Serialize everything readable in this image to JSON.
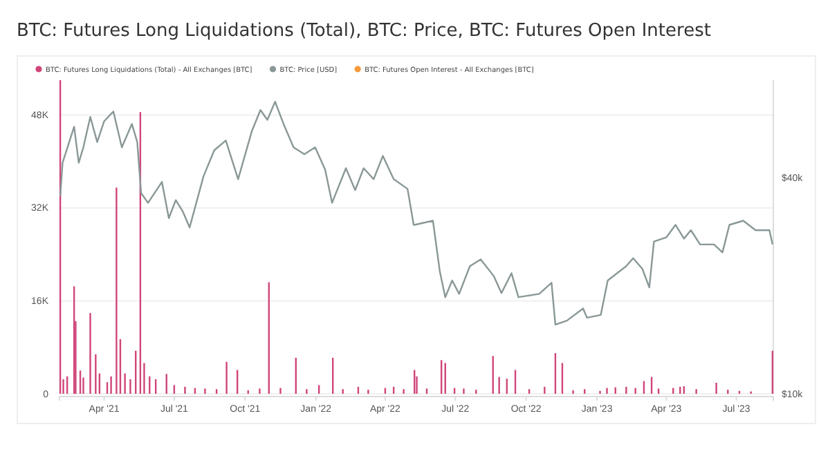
{
  "chart_data": {
    "type": "bar",
    "title": "BTC: Futures Long Liquidations (Total), BTC: Price, BTC: Futures Open Interest",
    "xlim": [
      "2021-02-02",
      "2023-08-18"
    ],
    "xticks": [
      {
        "value": "2021-04-01",
        "label": "Apr '21"
      },
      {
        "value": "2021-07-01",
        "label": "Jul '21"
      },
      {
        "value": "2021-10-01",
        "label": "Oct '21"
      },
      {
        "value": "2022-01-01",
        "label": "Jan '22"
      },
      {
        "value": "2022-04-01",
        "label": "Apr '22"
      },
      {
        "value": "2022-07-01",
        "label": "Jul '22"
      },
      {
        "value": "2022-10-01",
        "label": "Oct '22"
      },
      {
        "value": "2023-01-01",
        "label": "Jan '23"
      },
      {
        "value": "2023-04-01",
        "label": "Apr '23"
      },
      {
        "value": "2023-07-01",
        "label": "Jul '23"
      }
    ],
    "ylim": [
      0,
      54000
    ],
    "yticks": [
      {
        "value": 0,
        "label": "0"
      },
      {
        "value": 16000,
        "label": "16K"
      },
      {
        "value": 32000,
        "label": "32K"
      },
      {
        "value": 48000,
        "label": "48K"
      }
    ],
    "y2lim": [
      10000,
      75000
    ],
    "y2ticks": [
      {
        "value": 10000,
        "label": "$10k"
      },
      {
        "value": 40000,
        "label": "$40k"
      }
    ],
    "log": "y2",
    "grid": "y",
    "legend": "top left",
    "series": [
      {
        "name": "BTC: Futures Long Liquidations (Total) - All Exchanges [BTC]",
        "axis": "y",
        "color": "#d0457a",
        "x": [
          "2021-02-03",
          "2021-02-07",
          "2021-02-12",
          "2021-02-21",
          "2021-02-23",
          "2021-03-01",
          "2021-03-05",
          "2021-03-14",
          "2021-03-21",
          "2021-03-26",
          "2021-04-05",
          "2021-04-10",
          "2021-04-17",
          "2021-04-22",
          "2021-04-28",
          "2021-05-05",
          "2021-05-12",
          "2021-05-18",
          "2021-05-23",
          "2021-05-30",
          "2021-06-07",
          "2021-06-21",
          "2021-07-01",
          "2021-07-15",
          "2021-07-28",
          "2021-08-10",
          "2021-08-25",
          "2021-09-07",
          "2021-09-21",
          "2021-10-05",
          "2021-10-20",
          "2021-11-01",
          "2021-11-16",
          "2021-12-06",
          "2021-12-20",
          "2022-01-05",
          "2022-01-23",
          "2022-02-05",
          "2022-02-25",
          "2022-03-10",
          "2022-04-01",
          "2022-04-12",
          "2022-04-25",
          "2022-05-09",
          "2022-05-12",
          "2022-05-25",
          "2022-06-13",
          "2022-06-18",
          "2022-06-30",
          "2022-07-12",
          "2022-07-28",
          "2022-08-19",
          "2022-08-27",
          "2022-09-06",
          "2022-09-17",
          "2022-10-05",
          "2022-10-25",
          "2022-11-08",
          "2022-11-17",
          "2022-12-01",
          "2022-12-16",
          "2023-01-05",
          "2023-01-14",
          "2023-01-25",
          "2023-02-08",
          "2023-02-20",
          "2023-03-03",
          "2023-03-13",
          "2023-03-22",
          "2023-04-10",
          "2023-04-19",
          "2023-04-24",
          "2023-05-10",
          "2023-06-05",
          "2023-06-20",
          "2023-07-05",
          "2023-07-20",
          "2023-08-17"
        ],
        "values": [
          54000,
          2500,
          3000,
          18500,
          12500,
          4000,
          2800,
          13900,
          6800,
          3500,
          2000,
          3000,
          35500,
          9400,
          3500,
          2500,
          7400,
          48500,
          5300,
          3000,
          2500,
          3400,
          1500,
          1200,
          1000,
          900,
          800,
          5500,
          4100,
          600,
          900,
          19200,
          1000,
          6200,
          800,
          1500,
          6200,
          800,
          1200,
          700,
          1000,
          1200,
          800,
          4100,
          3000,
          900,
          5800,
          5300,
          1000,
          900,
          700,
          6500,
          2900,
          2600,
          4100,
          800,
          1200,
          7000,
          5300,
          600,
          800,
          500,
          1000,
          1100,
          1200,
          1000,
          2200,
          2900,
          900,
          1000,
          1200,
          1300,
          800,
          1900,
          700,
          500,
          400,
          7400
        ]
      },
      {
        "name": "BTC: Price [USD]",
        "type": "line",
        "axis": "y2",
        "color": "#8a9797",
        "x": [
          "2021-02-03",
          "2021-02-06",
          "2021-02-21",
          "2021-02-27",
          "2021-03-05",
          "2021-03-14",
          "2021-03-23",
          "2021-04-01",
          "2021-04-13",
          "2021-04-24",
          "2021-05-07",
          "2021-05-14",
          "2021-05-19",
          "2021-05-28",
          "2021-06-15",
          "2021-06-24",
          "2021-07-03",
          "2021-07-12",
          "2021-07-21",
          "2021-08-08",
          "2021-08-22",
          "2021-09-06",
          "2021-09-22",
          "2021-10-10",
          "2021-10-21",
          "2021-10-30",
          "2021-11-09",
          "2021-11-20",
          "2021-12-03",
          "2021-12-17",
          "2021-12-31",
          "2022-01-13",
          "2022-01-22",
          "2022-02-09",
          "2022-02-21",
          "2022-03-04",
          "2022-03-17",
          "2022-03-29",
          "2022-04-12",
          "2022-04-30",
          "2022-05-08",
          "2022-05-09",
          "2022-06-02",
          "2022-06-11",
          "2022-06-18",
          "2022-06-27",
          "2022-07-06",
          "2022-07-20",
          "2022-08-03",
          "2022-08-20",
          "2022-08-30",
          "2022-09-12",
          "2022-09-21",
          "2022-10-18",
          "2022-11-03",
          "2022-11-08",
          "2022-11-23",
          "2022-12-14",
          "2022-12-19",
          "2023-01-06",
          "2023-01-15",
          "2023-02-08",
          "2023-02-17",
          "2023-03-01",
          "2023-03-10",
          "2023-03-16",
          "2023-04-01",
          "2023-04-13",
          "2023-04-24",
          "2023-05-03",
          "2023-05-15",
          "2023-06-02",
          "2023-06-13",
          "2023-06-22",
          "2023-07-10",
          "2023-07-26",
          "2023-08-13",
          "2023-08-17"
        ],
        "values": [
          35600,
          44100,
          55600,
          44100,
          48700,
          59200,
          50400,
          57600,
          61300,
          48700,
          56600,
          50400,
          36300,
          34100,
          39000,
          30900,
          34700,
          32300,
          29100,
          40400,
          47800,
          50900,
          39700,
          54200,
          61900,
          58100,
          65300,
          56600,
          48700,
          46600,
          48700,
          42200,
          34100,
          42600,
          37000,
          42600,
          39700,
          46100,
          39700,
          37300,
          29600,
          29600,
          30400,
          21900,
          18600,
          20700,
          19000,
          22700,
          23700,
          21300,
          19100,
          21700,
          18600,
          19000,
          20400,
          15600,
          16000,
          17300,
          16300,
          16600,
          20700,
          22700,
          23900,
          22300,
          19800,
          26600,
          27300,
          29600,
          27100,
          28600,
          26100,
          26100,
          24800,
          29600,
          30400,
          28600,
          28600,
          26100
        ]
      },
      {
        "name": "BTC: Futures Open Interest - All Exchanges [BTC]",
        "type": "line",
        "axis": "y2",
        "color": "#f59a3a"
      }
    ]
  }
}
